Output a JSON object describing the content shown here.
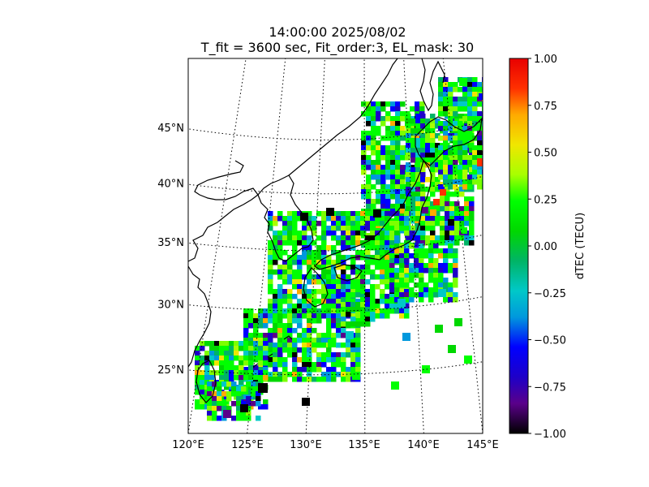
{
  "title_line1": "14:00:00 2025/08/02",
  "title_line2": "T_fit = 3600 sec, Fit_order:3, EL_mask: 30",
  "colorbar": {
    "label": "dTEC (TECU)",
    "ticks": [
      "1.00",
      "0.75",
      "0.50",
      "0.25",
      "0.00",
      "−0.25",
      "−0.50",
      "−0.75",
      "−1.00"
    ],
    "range": [
      -1.0,
      1.0
    ],
    "colormap": "nipy_spectral"
  },
  "map": {
    "lon_labels": [
      "120°E",
      "125°E",
      "130°E",
      "135°E",
      "140°E",
      "145°E"
    ],
    "lat_labels": [
      "25°N",
      "30°N",
      "35°N",
      "40°N",
      "45°N"
    ],
    "lon_values": [
      120,
      125,
      130,
      135,
      140,
      145
    ],
    "lat_values": [
      25,
      30,
      35,
      40,
      45
    ],
    "lon_range": [
      120,
      145
    ],
    "lat_range": [
      20,
      49
    ],
    "gridlines": "dotted"
  }
}
